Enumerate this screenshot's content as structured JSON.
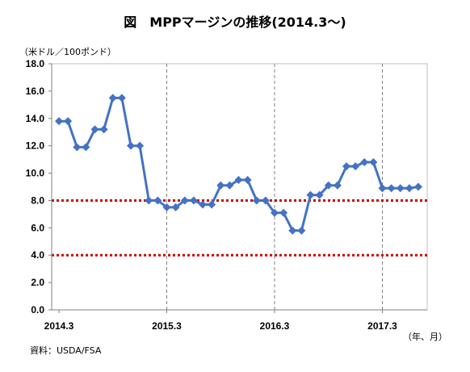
{
  "chart_data": {
    "type": "line",
    "title": "図　MPPマージンの推移(2014.3～)",
    "ylabel": "（米ドル／100ポンド）",
    "xlabel": "（年、月）",
    "source": "資料：USDA/FSA",
    "ylim": [
      0,
      18
    ],
    "yticks": [
      "0.0",
      "2.0",
      "4.0",
      "6.0",
      "8.0",
      "10.0",
      "12.0",
      "14.0",
      "16.0",
      "18.0"
    ],
    "x_tick_labels": [
      "2014.3",
      "2015.3",
      "2016.3",
      "2017.3"
    ],
    "grid": false,
    "colors": {
      "series": "#4472C4",
      "reference": "#cc0000",
      "year_divider": "#808080"
    },
    "reference_lines": [
      8.0,
      4.0
    ],
    "series": [
      {
        "values": [
          13.8,
          13.8,
          11.9,
          11.9,
          13.2,
          13.2,
          15.5,
          15.5,
          12.0,
          12.0,
          8.0,
          8.0,
          7.5,
          7.5,
          8.0,
          8.0,
          7.7,
          7.7,
          9.1,
          9.1,
          9.5,
          9.5,
          8.0,
          8.0,
          7.1,
          7.1,
          5.8,
          5.8,
          8.4,
          8.4,
          9.1,
          9.1,
          10.5,
          10.5,
          10.8,
          10.8,
          8.9,
          8.9,
          8.9,
          8.9,
          9.0
        ]
      }
    ]
  }
}
